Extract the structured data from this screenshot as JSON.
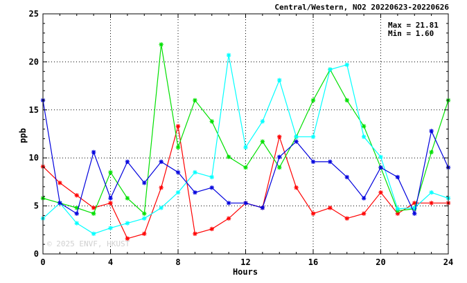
{
  "chart_data": {
    "type": "line",
    "title": "Central/Western, NO2 20220623-20220626",
    "xlabel": "Hours",
    "ylabel": "ppb",
    "xlim": [
      0,
      24
    ],
    "ylim": [
      0,
      25
    ],
    "x_ticks": [
      0,
      4,
      8,
      12,
      16,
      20,
      24
    ],
    "y_ticks": [
      0,
      5,
      10,
      15,
      20,
      25
    ],
    "grid": true,
    "stats": {
      "max_label": "Max = 21.81",
      "min_label": "Min =  1.60"
    },
    "watermark": "© 2025 ENVF, HKUST",
    "x": [
      0,
      1,
      2,
      3,
      4,
      5,
      6,
      7,
      8,
      9,
      10,
      11,
      12,
      13,
      14,
      15,
      16,
      17,
      18,
      19,
      20,
      21,
      22,
      23,
      24
    ],
    "series": [
      {
        "color": "#ff0000",
        "values": [
          9.1,
          7.4,
          6.1,
          4.8,
          5.3,
          1.6,
          2.1,
          6.9,
          13.3,
          2.1,
          2.6,
          3.7,
          5.3,
          4.8,
          12.2,
          6.9,
          4.2,
          4.8,
          3.7,
          4.2,
          6.4,
          4.2,
          5.3,
          5.3,
          5.3
        ]
      },
      {
        "color": "#00e000",
        "values": [
          5.8,
          5.3,
          4.8,
          4.2,
          8.5,
          5.8,
          4.2,
          21.81,
          11.1,
          16.0,
          13.8,
          10.1,
          9.0,
          11.7,
          9.0,
          12.2,
          16.0,
          19.2,
          16.0,
          13.3,
          9.0,
          4.5,
          4.7,
          10.6,
          16.0
        ]
      },
      {
        "color": "#00ffff",
        "values": [
          3.7,
          5.3,
          3.2,
          2.1,
          2.7,
          3.2,
          3.7,
          4.8,
          6.4,
          8.5,
          8.0,
          20.7,
          11.1,
          13.8,
          18.1,
          12.2,
          12.2,
          19.2,
          19.7,
          12.2,
          10.1,
          4.7,
          4.8,
          6.4,
          5.8
        ]
      },
      {
        "color": "#0000dd",
        "values": [
          16.0,
          5.3,
          4.2,
          10.6,
          5.8,
          9.6,
          7.4,
          9.6,
          8.5,
          6.4,
          6.9,
          5.3,
          5.3,
          4.8,
          10.1,
          11.7,
          9.6,
          9.6,
          8.0,
          5.8,
          9.0,
          8.0,
          4.2,
          12.8,
          9.0
        ]
      }
    ]
  }
}
